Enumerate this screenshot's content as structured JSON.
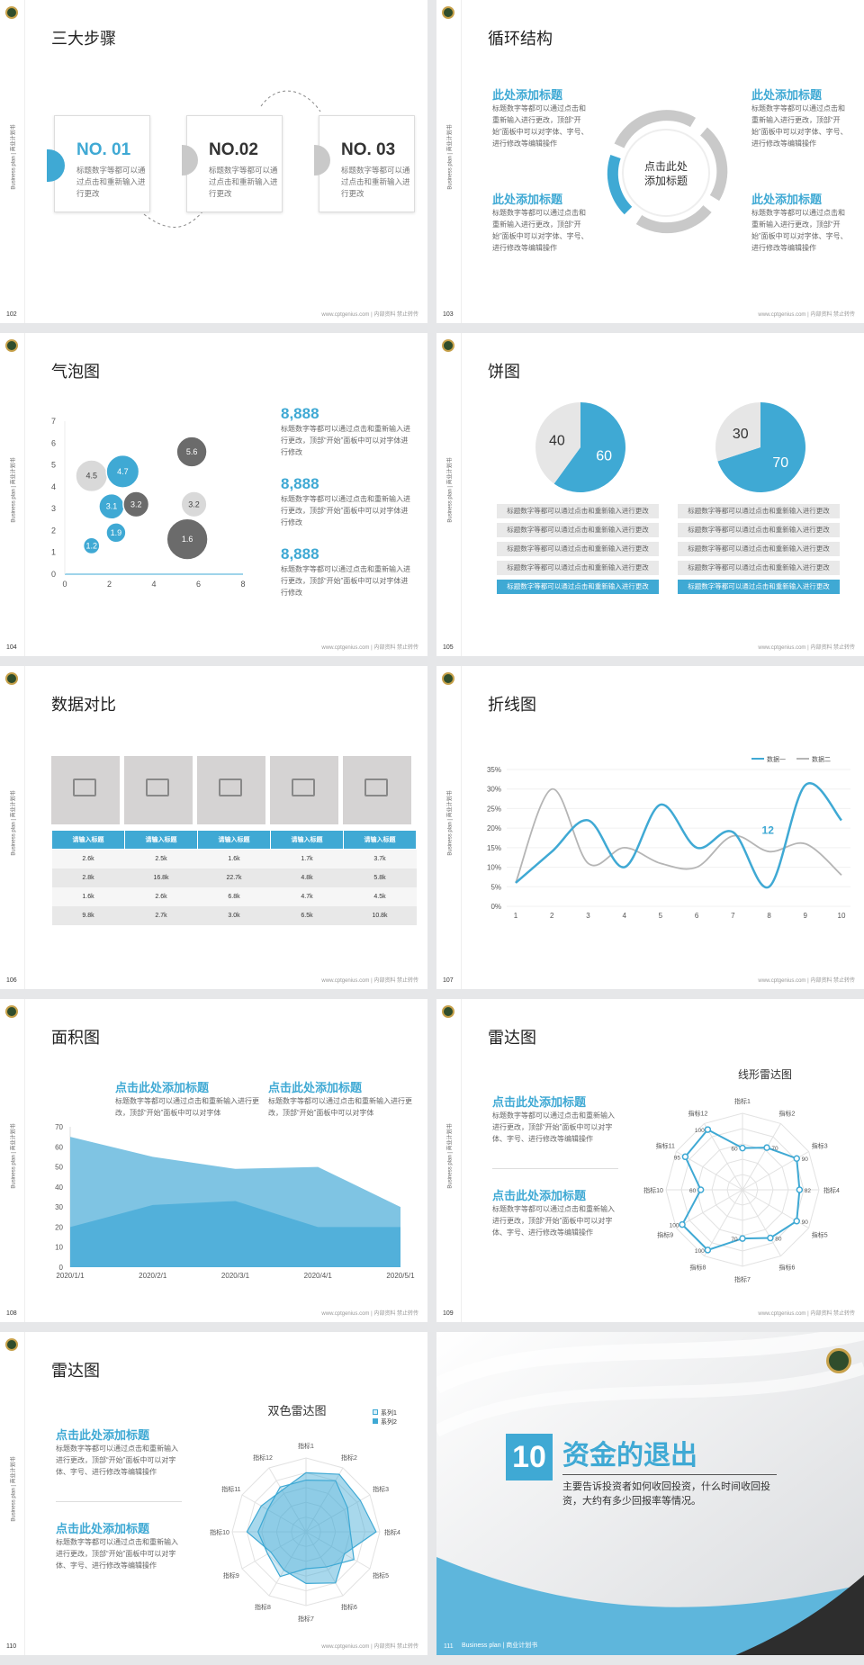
{
  "footer": "www.cptgenius.com | 内部资料 禁止转传",
  "side_label": "Business plan | 商业计划书",
  "slides": {
    "s102": {
      "num": "102",
      "title": "三大步骤",
      "cards": [
        {
          "h": "NO. 01",
          "t": "标题数字等都可以通过点击和重新输入进行更改"
        },
        {
          "h": "NO.02",
          "t": "标题数字等都可以通过点击和重新输入进行更改"
        },
        {
          "h": "NO. 03",
          "t": "标题数字等都可以通过点击和重新输入进行更改"
        }
      ]
    },
    "s103": {
      "num": "103",
      "title": "循环结构",
      "center": [
        "点击此处",
        "添加标题"
      ],
      "blocks": [
        {
          "h": "此处添加标题",
          "t": "标题数字等都可以通过点击和重新输入进行更改，顶部“开始”面板中可以对字体、字号、进行修改等编辑操作"
        },
        {
          "h": "此处添加标题",
          "t": "标题数字等都可以通过点击和重新输入进行更改，顶部“开始”面板中可以对字体、字号、进行修改等编辑操作"
        },
        {
          "h": "此处添加标题",
          "t": "标题数字等都可以通过点击和重新输入进行更改，顶部“开始”面板中可以对字体、字号、进行修改等编辑操作"
        },
        {
          "h": "此处添加标题",
          "t": "标题数字等都可以通过点击和重新输入进行更改，顶部“开始”面板中可以对字体、字号、进行修改等编辑操作"
        }
      ]
    },
    "s104": {
      "num": "104",
      "title": "气泡图",
      "items": [
        {
          "n": "8,888",
          "t": "标题数字等都可以通过点击和重新输入进行更改，顶部“开始”面板中可以对字体进行修改"
        },
        {
          "n": "8,888",
          "t": "标题数字等都可以通过点击和重新输入进行更改，顶部“开始”面板中可以对字体进行修改"
        },
        {
          "n": "8,888",
          "t": "标题数字等都可以通过点击和重新输入进行更改，顶部“开始”面板中可以对字体进行修改"
        }
      ]
    },
    "s105": {
      "num": "105",
      "title": "饼图",
      "rows": [
        "标题数字等都可以通过点击和重新输入进行更改",
        "标题数字等都可以通过点击和重新输入进行更改",
        "标题数字等都可以通过点击和重新输入进行更改",
        "标题数字等都可以通过点击和重新输入进行更改",
        "标题数字等都可以通过点击和重新输入进行更改"
      ]
    },
    "s106": {
      "num": "106",
      "title": "数据对比",
      "headers": [
        "请输入标题",
        "请输入标题",
        "请输入标题",
        "请输入标题",
        "请输入标题"
      ],
      "rows": [
        [
          "2.6k",
          "2.5k",
          "1.6k",
          "1.7k",
          "3.7k"
        ],
        [
          "2.8k",
          "16.8k",
          "22.7k",
          "4.8k",
          "5.8k"
        ],
        [
          "1.6k",
          "2.6k",
          "6.8k",
          "4.7k",
          "4.5k"
        ],
        [
          "9.8k",
          "2.7k",
          "3.0k",
          "6.5k",
          "10.8k"
        ]
      ]
    },
    "s107": {
      "num": "107",
      "title": "折线图",
      "legend": [
        "数据一",
        "数据二"
      ],
      "annotation": "12"
    },
    "s108": {
      "num": "108",
      "title": "面积图",
      "blocks": [
        {
          "h": "点击此处添加标题",
          "t": "标题数字等都可以通过点击和重新输入进行更改，顶部“开始”面板中可以对字体"
        },
        {
          "h": "点击此处添加标题",
          "t": "标题数字等都可以通过点击和重新输入进行更改，顶部“开始”面板中可以对字体"
        }
      ]
    },
    "s109": {
      "num": "109",
      "title": "雷达图",
      "chart_title": "线形雷达图",
      "blocks": [
        {
          "h": "点击此处添加标题",
          "t": "标题数字等都可以通过点击和重新输入进行更改，顶部“开始”面板中可以对字体、字号、进行修改等编辑操作"
        },
        {
          "h": "点击此处添加标题",
          "t": "标题数字等都可以通过点击和重新输入进行更改，顶部“开始”面板中可以对字体、字号、进行修改等编辑操作"
        }
      ]
    },
    "s110": {
      "num": "110",
      "title": "雷达图",
      "chart_title": "双色雷达图",
      "legend": [
        "系列1",
        "系列2"
      ],
      "blocks": [
        {
          "h": "点击此处添加标题",
          "t": "标题数字等都可以通过点击和重新输入进行更改，顶部“开始”面板中可以对字体、字号、进行修改等编辑操作"
        },
        {
          "h": "点击此处添加标题",
          "t": "标题数字等都可以通过点击和重新输入进行更改，顶部“开始”面板中可以对字体、字号、进行修改等编辑操作"
        }
      ]
    },
    "s111": {
      "num": "111",
      "chapter": "10",
      "heading": "资金的退出",
      "desc": "主要告诉投资者如何收回投资，什么时间收回投资，大约有多少回报率等情况。",
      "foot": "Business plan | 商业计划书"
    }
  },
  "chart_data": [
    {
      "type": "scatter",
      "id": "bubble",
      "xlim": [
        0,
        8
      ],
      "ylim": [
        0,
        7
      ],
      "xticks": [
        0,
        2,
        4,
        6,
        8
      ],
      "yticks": [
        0,
        1,
        2,
        3,
        4,
        5,
        6,
        7
      ],
      "points": [
        {
          "x": 1.2,
          "y": 1.3,
          "size": 1.2,
          "label": "1.2",
          "color": "#3fa9d4"
        },
        {
          "x": 2.3,
          "y": 1.9,
          "size": 1.9,
          "label": "1.9",
          "color": "#3fa9d4"
        },
        {
          "x": 2.1,
          "y": 3.1,
          "size": 3.1,
          "label": "3.1",
          "color": "#3fa9d4"
        },
        {
          "x": 3.2,
          "y": 3.2,
          "size": 3.2,
          "label": "3.2",
          "color": "#6b6b6b"
        },
        {
          "x": 1.2,
          "y": 4.5,
          "size": 4.5,
          "label": "4.5",
          "color": "#d9d9d9"
        },
        {
          "x": 2.6,
          "y": 4.7,
          "size": 4.7,
          "label": "4.7",
          "color": "#3fa9d4"
        },
        {
          "x": 5.5,
          "y": 1.6,
          "size": 6.5,
          "label": "1.6",
          "color": "#6b6b6b"
        },
        {
          "x": 5.8,
          "y": 3.2,
          "size": 3.2,
          "label": "3.2",
          "color": "#d9d9d9"
        },
        {
          "x": 5.7,
          "y": 5.6,
          "size": 4.2,
          "label": "5.6",
          "color": "#6b6b6b"
        }
      ]
    },
    {
      "type": "pie",
      "id": "pie1",
      "values": [
        40,
        60
      ],
      "labels": [
        "40",
        "60"
      ],
      "colors": [
        "#e6e6e6",
        "#3fa9d4"
      ]
    },
    {
      "type": "pie",
      "id": "pie2",
      "values": [
        30,
        70
      ],
      "labels": [
        "30",
        "70"
      ],
      "colors": [
        "#e6e6e6",
        "#3fa9d4"
      ]
    },
    {
      "type": "line",
      "id": "line",
      "x": [
        1,
        2,
        3,
        4,
        5,
        6,
        7,
        8,
        9,
        10
      ],
      "ylim": [
        0,
        35
      ],
      "yticks": [
        "0%",
        "5%",
        "10%",
        "15%",
        "20%",
        "25%",
        "30%",
        "35%"
      ],
      "series": [
        {
          "name": "数据一",
          "values": [
            6,
            14,
            22,
            10,
            26,
            15,
            19,
            5,
            31,
            22
          ],
          "color": "#3fa9d4"
        },
        {
          "name": "数据二",
          "values": [
            6,
            30,
            11,
            15,
            11,
            10,
            18,
            14,
            16,
            8
          ],
          "color": "#b5b5b5"
        }
      ]
    },
    {
      "type": "area",
      "id": "area",
      "categories": [
        "2020/1/1",
        "2020/2/1",
        "2020/3/1",
        "2020/4/1",
        "2020/5/1"
      ],
      "ylim": [
        0,
        70
      ],
      "yticks": [
        0,
        10,
        20,
        30,
        40,
        50,
        60,
        70
      ],
      "series": [
        {
          "values": [
            65,
            55,
            49,
            50,
            30
          ],
          "color": "#7fc4e3"
        },
        {
          "values": [
            20,
            31,
            33,
            20,
            20
          ],
          "color": "#52b0da"
        }
      ]
    },
    {
      "type": "radar",
      "id": "radar1",
      "title": "线形雷达图",
      "axes": [
        "指标1",
        "指标2",
        "指标3",
        "指标4",
        "指标5",
        "指标6",
        "指标7",
        "指标8",
        "指标9",
        "指标10",
        "指标11",
        "指标12"
      ],
      "values": [
        60,
        70,
        90,
        82,
        90,
        80,
        70,
        100,
        100,
        60,
        95,
        100
      ],
      "max": 110
    },
    {
      "type": "radar",
      "id": "radar2",
      "title": "双色雷达图",
      "axes": [
        "指标1",
        "指标2",
        "指标3",
        "指标4",
        "指标5",
        "指标6",
        "指标7",
        "指标8",
        "指标9",
        "指标10",
        "指标11",
        "指标12"
      ],
      "series": [
        {
          "name": "系列1",
          "values": [
            70,
            80,
            65,
            60,
            75,
            55,
            50,
            70,
            60,
            65,
            60,
            70
          ]
        },
        {
          "name": "系列2",
          "values": [
            80,
            90,
            85,
            95,
            60,
            80,
            70,
            60,
            55,
            80,
            70,
            65
          ]
        }
      ]
    }
  ]
}
